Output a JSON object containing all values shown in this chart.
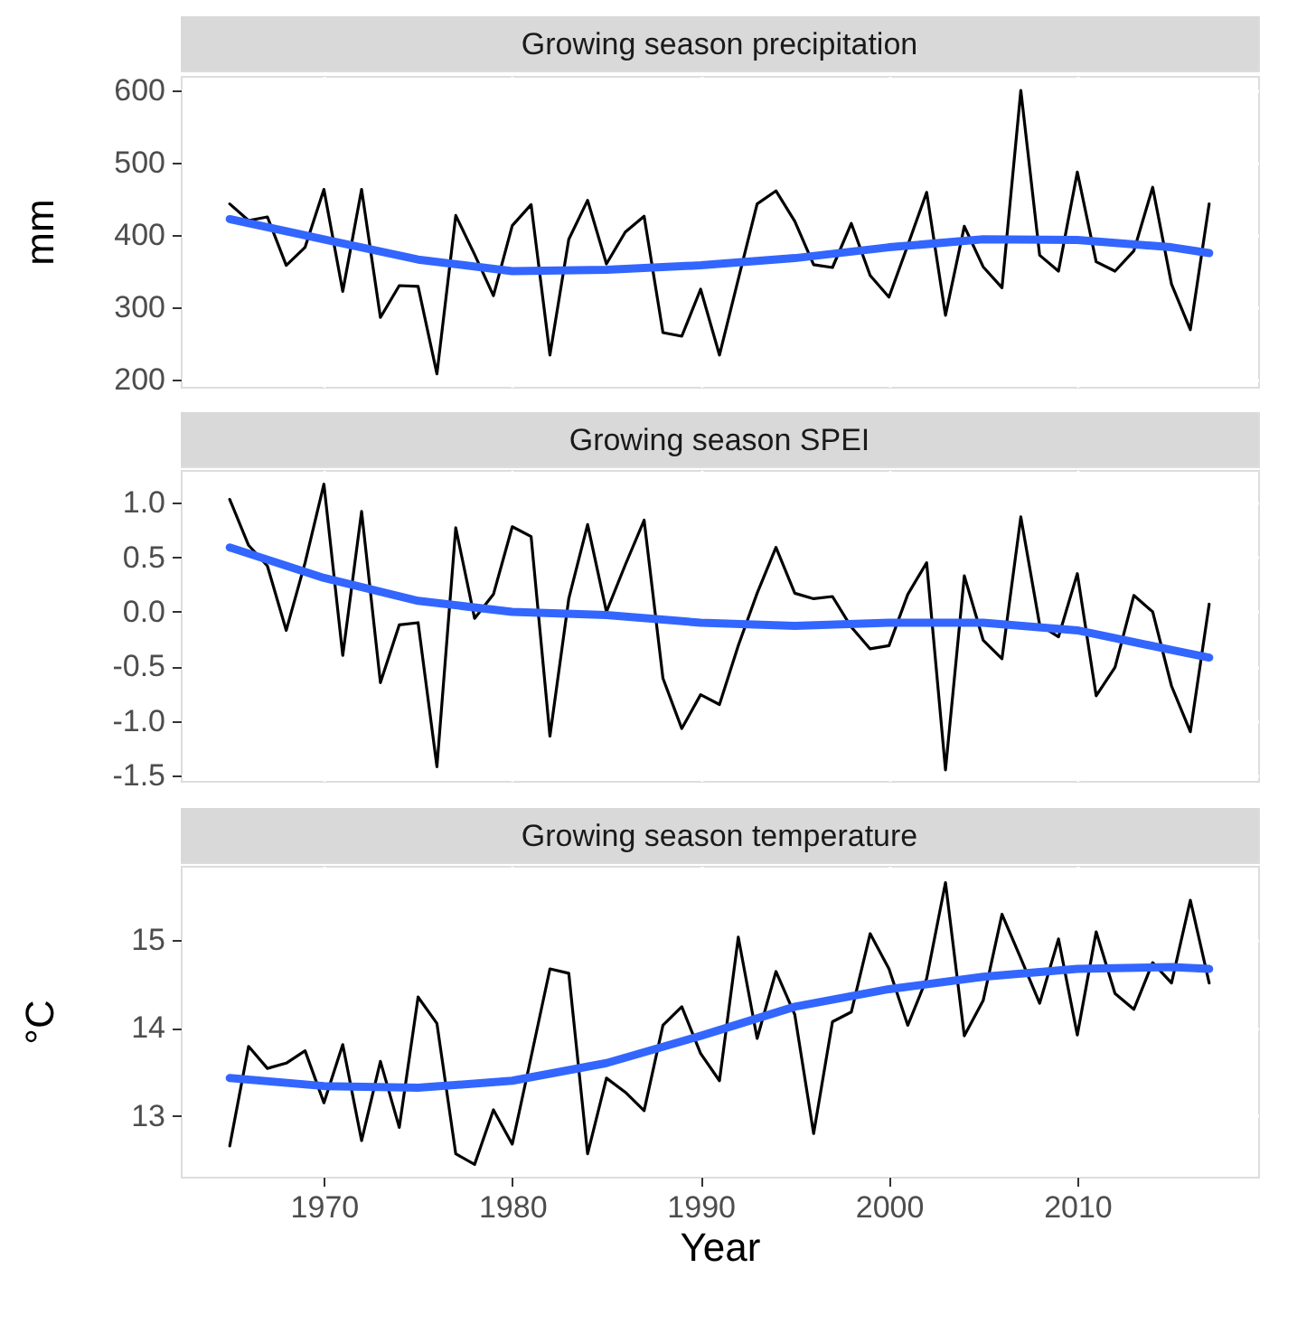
{
  "chart_data": [
    {
      "type": "line",
      "title": "Growing season precipitation",
      "ylabel": "mm",
      "tick_labels": "y",
      "grid": true,
      "xlim": [
        1962.4,
        2019.6
      ],
      "xticks": [
        1970,
        1980,
        1990,
        2000,
        2010
      ],
      "ylim": [
        190,
        620
      ],
      "yticks": [
        200,
        300,
        400,
        500,
        600
      ],
      "x": [
        1965,
        1966,
        1967,
        1968,
        1969,
        1970,
        1971,
        1972,
        1973,
        1974,
        1975,
        1976,
        1977,
        1978,
        1979,
        1980,
        1981,
        1982,
        1983,
        1984,
        1985,
        1986,
        1987,
        1988,
        1989,
        1990,
        1991,
        1992,
        1993,
        1994,
        1995,
        1996,
        1997,
        1998,
        1999,
        2000,
        2001,
        2002,
        2003,
        2004,
        2005,
        2006,
        2007,
        2008,
        2009,
        2010,
        2011,
        2012,
        2013,
        2014,
        2015,
        2016,
        2017
      ],
      "series": [
        {
          "color": "#000000",
          "values": [
            443,
            420,
            425,
            358,
            383,
            463,
            322,
            463,
            286,
            330,
            329,
            208,
            427,
            373,
            316,
            413,
            442,
            234,
            394,
            448,
            360,
            404,
            426,
            265,
            260,
            325,
            234,
            339,
            443,
            461,
            419,
            359,
            355,
            416,
            344,
            314,
            386,
            459,
            289,
            412,
            356,
            327,
            600,
            372,
            350,
            487,
            363,
            350,
            378,
            466,
            332,
            269,
            443
          ]
        },
        {
          "color": "#3366ff",
          "x": [
            1965,
            1970,
            1975,
            1980,
            1985,
            1990,
            1995,
            2000,
            2005,
            2010,
            2015,
            2017
          ],
          "values": [
            422,
            394,
            366,
            350,
            352,
            358,
            368,
            383,
            394,
            393,
            383,
            375
          ]
        }
      ]
    },
    {
      "type": "line",
      "title": "Growing season SPEI",
      "tick_labels": "y",
      "grid": true,
      "xlim": [
        1962.4,
        2019.6
      ],
      "xticks": [
        1970,
        1980,
        1990,
        2000,
        2010
      ],
      "ylim": [
        -1.55,
        1.3
      ],
      "yticks": [
        {
          "value": -1.5,
          "label": "-1.5"
        },
        {
          "value": -1,
          "label": "-1.0"
        },
        {
          "value": -0.5,
          "label": "-0.5"
        },
        {
          "value": 0,
          "label": "0.0"
        },
        {
          "value": 0.5,
          "label": "0.5"
        },
        {
          "value": 1,
          "label": "1.0"
        }
      ],
      "x": [
        1965,
        1966,
        1967,
        1968,
        1969,
        1970,
        1971,
        1972,
        1973,
        1974,
        1975,
        1976,
        1977,
        1978,
        1979,
        1980,
        1981,
        1982,
        1983,
        1984,
        1985,
        1986,
        1987,
        1988,
        1989,
        1990,
        1991,
        1992,
        1993,
        1994,
        1995,
        1996,
        1997,
        1998,
        1999,
        2000,
        2001,
        2002,
        2003,
        2004,
        2005,
        2006,
        2007,
        2008,
        2009,
        2010,
        2011,
        2012,
        2013,
        2014,
        2015,
        2016,
        2017
      ],
      "series": [
        {
          "color": "#000000",
          "values": [
            1.03,
            0.61,
            0.42,
            -0.17,
            0.45,
            1.17,
            -0.4,
            0.92,
            -0.65,
            -0.12,
            -0.1,
            -1.42,
            0.77,
            -0.06,
            0.16,
            0.78,
            0.69,
            -1.14,
            0.12,
            0.8,
            0.0,
            0.43,
            0.84,
            -0.61,
            -1.07,
            -0.76,
            -0.85,
            -0.31,
            0.17,
            0.59,
            0.17,
            0.12,
            0.14,
            -0.14,
            -0.34,
            -0.31,
            0.16,
            0.45,
            -1.45,
            0.33,
            -0.26,
            -0.43,
            0.87,
            -0.12,
            -0.23,
            0.35,
            -0.77,
            -0.51,
            0.15,
            0.0,
            -0.68,
            -1.1,
            0.07
          ]
        },
        {
          "color": "#3366ff",
          "x": [
            1965,
            1970,
            1975,
            1980,
            1985,
            1990,
            1995,
            2000,
            2005,
            2010,
            2015,
            2017
          ],
          "values": [
            0.59,
            0.31,
            0.1,
            0.0,
            -0.03,
            -0.1,
            -0.13,
            -0.1,
            -0.1,
            -0.17,
            -0.35,
            -0.42
          ]
        }
      ]
    },
    {
      "type": "line",
      "title": "Growing season temperature",
      "xlabel": "Year",
      "ylabel": "°C",
      "grid": true,
      "xlim": [
        1962.4,
        2019.6
      ],
      "xticks": [
        1970,
        1980,
        1990,
        2000,
        2010
      ],
      "ylim": [
        12.31,
        15.84
      ],
      "yticks": [
        13,
        14,
        15
      ],
      "x": [
        1965,
        1966,
        1967,
        1968,
        1969,
        1970,
        1971,
        1972,
        1973,
        1974,
        1975,
        1976,
        1977,
        1978,
        1979,
        1980,
        1981,
        1982,
        1983,
        1984,
        1985,
        1986,
        1987,
        1988,
        1989,
        1990,
        1991,
        1992,
        1993,
        1994,
        1995,
        1996,
        1997,
        1998,
        1999,
        2000,
        2001,
        2002,
        2003,
        2004,
        2005,
        2006,
        2007,
        2008,
        2009,
        2010,
        2011,
        2012,
        2013,
        2014,
        2015,
        2016,
        2017
      ],
      "series": [
        {
          "color": "#000000",
          "values": [
            12.66,
            13.79,
            13.54,
            13.6,
            13.74,
            13.15,
            13.81,
            12.72,
            13.62,
            12.87,
            14.35,
            14.05,
            12.57,
            12.45,
            13.07,
            12.68,
            13.67,
            14.67,
            14.62,
            12.57,
            13.43,
            13.27,
            13.06,
            14.03,
            14.24,
            13.71,
            13.4,
            15.03,
            13.88,
            14.64,
            14.15,
            12.8,
            14.07,
            14.18,
            15.07,
            14.67,
            14.03,
            14.56,
            15.65,
            13.91,
            14.31,
            15.29,
            14.79,
            14.28,
            15.01,
            13.92,
            15.09,
            14.39,
            14.21,
            14.74,
            14.51,
            15.45,
            14.51
          ]
        },
        {
          "color": "#3366ff",
          "x": [
            1965,
            1970,
            1975,
            1980,
            1985,
            1990,
            1995,
            2000,
            2005,
            2010,
            2015,
            2017
          ],
          "values": [
            13.43,
            13.34,
            13.32,
            13.4,
            13.6,
            13.91,
            14.24,
            14.44,
            14.58,
            14.67,
            14.69,
            14.67
          ]
        }
      ]
    }
  ]
}
